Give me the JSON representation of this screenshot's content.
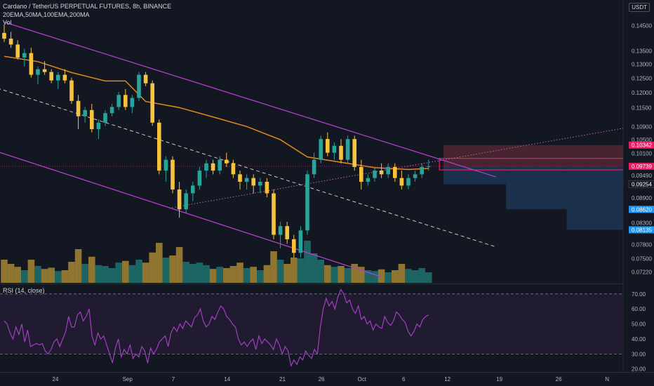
{
  "legend": {
    "symbol": "Cardano / TetherUS PERPETUAL FUTURES, 8h, BINANCE",
    "indicators": "20EMA,50MA,100EMA,200MA",
    "vol": "Vol",
    "rsi": "RSI (14, close)"
  },
  "currency_button": "USDT",
  "colors": {
    "background": "#131722",
    "up": "#26a69a",
    "down": "#f7c33d",
    "ma": "#e08a1c",
    "channel": "#b040c8",
    "rsi_line": "#a040c0",
    "rsi_band": "#2a1e3a",
    "stop_zone": "#5a2a34",
    "target_zone": "#1e3a5a",
    "last_price": "#e91e63"
  },
  "chart_data": [
    {
      "type": "candlestick",
      "title": "Cardano / TetherUS PERPETUAL FUTURES, 8h, BINANCE",
      "yscale": "log",
      "ylim": [
        0.07,
        0.1505
      ],
      "price_labels": [
        "0.14500",
        "0.13500",
        "0.13000",
        "0.12500",
        "0.12000",
        "0.11500",
        "0.10900",
        "0.10500",
        "0.10100",
        "0.09490",
        "0.08900",
        "0.08300",
        "0.07800",
        "0.07500",
        "0.07220"
      ],
      "tick_labels": [
        "24",
        "Sep",
        "7",
        "14",
        "21",
        "26",
        "Oct",
        "6",
        "12",
        "19",
        "26",
        "N"
      ],
      "tick_slots": [
        7.6,
        18.3,
        25.1,
        33.1,
        41.3,
        47.1,
        53.1,
        59.3,
        65.8,
        73.5,
        82.3,
        89.5
      ],
      "markers": [
        {
          "label": "0.10342",
          "color": "#e91e63"
        },
        {
          "label": "0.09739",
          "color": "#e91e63"
        },
        {
          "label": "0.09254",
          "color": "#131722"
        },
        {
          "label": "0.08620",
          "color": "#2196f3"
        },
        {
          "label": "0.08135",
          "color": "#2196f3"
        }
      ],
      "last_price": 0.0974,
      "ma_line": [
        [
          0,
          0.133
        ],
        [
          5,
          0.131
        ],
        [
          10,
          0.127
        ],
        [
          15,
          0.124
        ],
        [
          18,
          0.124
        ],
        [
          21,
          0.117
        ],
        [
          26,
          0.115
        ],
        [
          31,
          0.112
        ],
        [
          36,
          0.109
        ],
        [
          41,
          0.105
        ],
        [
          45,
          0.1
        ],
        [
          50,
          0.0985
        ],
        [
          55,
          0.097
        ],
        [
          60,
          0.0965
        ],
        [
          63,
          0.0968
        ]
      ],
      "ohlc": [
        [
          0.1421,
          0.1455,
          0.1385,
          0.1398
        ],
        [
          0.1398,
          0.1425,
          0.1362,
          0.1375
        ],
        [
          0.1375,
          0.1392,
          0.1318,
          0.1325
        ],
        [
          0.1325,
          0.1358,
          0.1292,
          0.1342
        ],
        [
          0.1342,
          0.1362,
          0.1252,
          0.1262
        ],
        [
          0.1262,
          0.1292,
          0.1228,
          0.1282
        ],
        [
          0.1282,
          0.1312,
          0.1262,
          0.1272
        ],
        [
          0.1272,
          0.1282,
          0.1232,
          0.1242
        ],
        [
          0.1242,
          0.1272,
          0.1212,
          0.1262
        ],
        [
          0.1262,
          0.1282,
          0.1232,
          0.1242
        ],
        [
          0.1242,
          0.1252,
          0.1162,
          0.1172
        ],
        [
          0.1172,
          0.1192,
          0.1082,
          0.1122
        ],
        [
          0.1122,
          0.1152,
          0.1102,
          0.1142
        ],
        [
          0.1142,
          0.1162,
          0.1072,
          0.1082
        ],
        [
          0.1082,
          0.1112,
          0.1052,
          0.1102
        ],
        [
          0.1102,
          0.1142,
          0.1092,
          0.1132
        ],
        [
          0.1132,
          0.1162,
          0.1122,
          0.1152
        ],
        [
          0.1152,
          0.1202,
          0.1142,
          0.1192
        ],
        [
          0.1192,
          0.1212,
          0.1142,
          0.1152
        ],
        [
          0.1152,
          0.1192,
          0.1132,
          0.1182
        ],
        [
          0.1182,
          0.1272,
          0.1172,
          0.1262
        ],
        [
          0.1262,
          0.1272,
          0.1222,
          0.1232
        ],
        [
          0.1232,
          0.1242,
          0.1092,
          0.1102
        ],
        [
          0.1102,
          0.1112,
          0.0952,
          0.0962
        ],
        [
          0.0962,
          0.1002,
          0.0932,
          0.0992
        ],
        [
          0.0992,
          0.1002,
          0.0902,
          0.0912
        ],
        [
          0.0912,
          0.0932,
          0.0842,
          0.0862
        ],
        [
          0.0862,
          0.0912,
          0.0852,
          0.0902
        ],
        [
          0.0902,
          0.0932,
          0.0882,
          0.0922
        ],
        [
          0.0922,
          0.0972,
          0.0912,
          0.0962
        ],
        [
          0.0962,
          0.0992,
          0.0942,
          0.0982
        ],
        [
          0.0982,
          0.0992,
          0.0952,
          0.0962
        ],
        [
          0.0962,
          0.1002,
          0.0952,
          0.0992
        ],
        [
          0.0992,
          0.1012,
          0.0972,
          0.0982
        ],
        [
          0.0982,
          0.0992,
          0.0942,
          0.0952
        ],
        [
          0.0952,
          0.0962,
          0.0912,
          0.0932
        ],
        [
          0.0932,
          0.0952,
          0.0912,
          0.0942
        ],
        [
          0.0942,
          0.0952,
          0.0902,
          0.0922
        ],
        [
          0.0922,
          0.0942,
          0.0902,
          0.0932
        ],
        [
          0.0932,
          0.0942,
          0.0892,
          0.0902
        ],
        [
          0.0902,
          0.0912,
          0.0792,
          0.0802
        ],
        [
          0.0802,
          0.0832,
          0.0772,
          0.0822
        ],
        [
          0.0822,
          0.0832,
          0.0782,
          0.0792
        ],
        [
          0.0792,
          0.0802,
          0.0752,
          0.0762
        ],
        [
          0.0762,
          0.0822,
          0.0752,
          0.0812
        ],
        [
          0.0812,
          0.0962,
          0.0802,
          0.0952
        ],
        [
          0.0952,
          0.1012,
          0.0942,
          0.0992
        ],
        [
          0.0992,
          0.1062,
          0.0982,
          0.1052
        ],
        [
          0.1052,
          0.1072,
          0.1002,
          0.1012
        ],
        [
          0.1012,
          0.1042,
          0.0992,
          0.1032
        ],
        [
          0.1032,
          0.1052,
          0.0982,
          0.0992
        ],
        [
          0.0992,
          0.1062,
          0.0982,
          0.1052
        ],
        [
          0.1052,
          0.1062,
          0.0962,
          0.0972
        ],
        [
          0.0972,
          0.0992,
          0.0912,
          0.0932
        ],
        [
          0.0932,
          0.0952,
          0.0922,
          0.0942
        ],
        [
          0.0942,
          0.0972,
          0.0932,
          0.0962
        ],
        [
          0.0962,
          0.0982,
          0.0942,
          0.0952
        ],
        [
          0.0952,
          0.0982,
          0.0942,
          0.0972
        ],
        [
          0.0972,
          0.0982,
          0.0932,
          0.0942
        ],
        [
          0.0942,
          0.0962,
          0.0912,
          0.0922
        ],
        [
          0.0922,
          0.0952,
          0.0912,
          0.0942
        ],
        [
          0.0942,
          0.0962,
          0.0932,
          0.0952
        ],
        [
          0.0952,
          0.0982,
          0.0942,
          0.0972
        ],
        [
          0.0972,
          0.0992,
          0.0962,
          0.0974
        ]
      ],
      "volume": [
        0.55,
        0.45,
        0.38,
        0.3,
        0.55,
        0.4,
        0.33,
        0.36,
        0.28,
        0.3,
        0.5,
        0.8,
        0.45,
        0.62,
        0.42,
        0.4,
        0.35,
        0.48,
        0.52,
        0.42,
        0.55,
        0.48,
        0.72,
        0.95,
        0.6,
        0.65,
        0.85,
        0.5,
        0.45,
        0.48,
        0.42,
        0.33,
        0.38,
        0.35,
        0.4,
        0.48,
        0.35,
        0.38,
        0.3,
        0.42,
        0.75,
        0.55,
        0.45,
        0.6,
        0.58,
        1.0,
        0.7,
        0.55,
        0.42,
        0.38,
        0.4,
        0.35,
        0.45,
        0.38,
        0.3,
        0.28,
        0.32,
        0.25,
        0.3,
        0.45,
        0.33,
        0.3,
        0.35,
        0.25
      ]
    },
    {
      "type": "line",
      "title": "RSI (14, close)",
      "ylim": [
        18,
        76
      ],
      "levels": [
        70,
        30
      ],
      "y_ticks": [
        "70.00",
        "60.00",
        "50.00",
        "40.00",
        "30.00",
        "20.00"
      ],
      "values": [
        52,
        50,
        44,
        40,
        48,
        43,
        50,
        38,
        46,
        35,
        36,
        37,
        36,
        37,
        32,
        30,
        33,
        38,
        40,
        35,
        40,
        45,
        55,
        48,
        48,
        56,
        58,
        52,
        55,
        60,
        42,
        36,
        44,
        40,
        42,
        36,
        30,
        24,
        34,
        40,
        28,
        33,
        30,
        36,
        27,
        30,
        28,
        35,
        32,
        24,
        34,
        30,
        33,
        38,
        40,
        42,
        35,
        44,
        48,
        45,
        50,
        47,
        52,
        50,
        48,
        54,
        56,
        60,
        52,
        48,
        50,
        55,
        53,
        58,
        62,
        60,
        55,
        53,
        50,
        48,
        40,
        36,
        38,
        35,
        38,
        40,
        33,
        42,
        37,
        40,
        38,
        36,
        33,
        40,
        36,
        30,
        35,
        32,
        22,
        26,
        23,
        28,
        26,
        32,
        29,
        27,
        33,
        30,
        48,
        60,
        67,
        62,
        65,
        60,
        68,
        73,
        70,
        64,
        66,
        60,
        57,
        62,
        53,
        55,
        50,
        52,
        46,
        50,
        48,
        47,
        55,
        51,
        49,
        52,
        58,
        56,
        53,
        51,
        45,
        42,
        45,
        50,
        48,
        53,
        55,
        56
      ]
    }
  ]
}
